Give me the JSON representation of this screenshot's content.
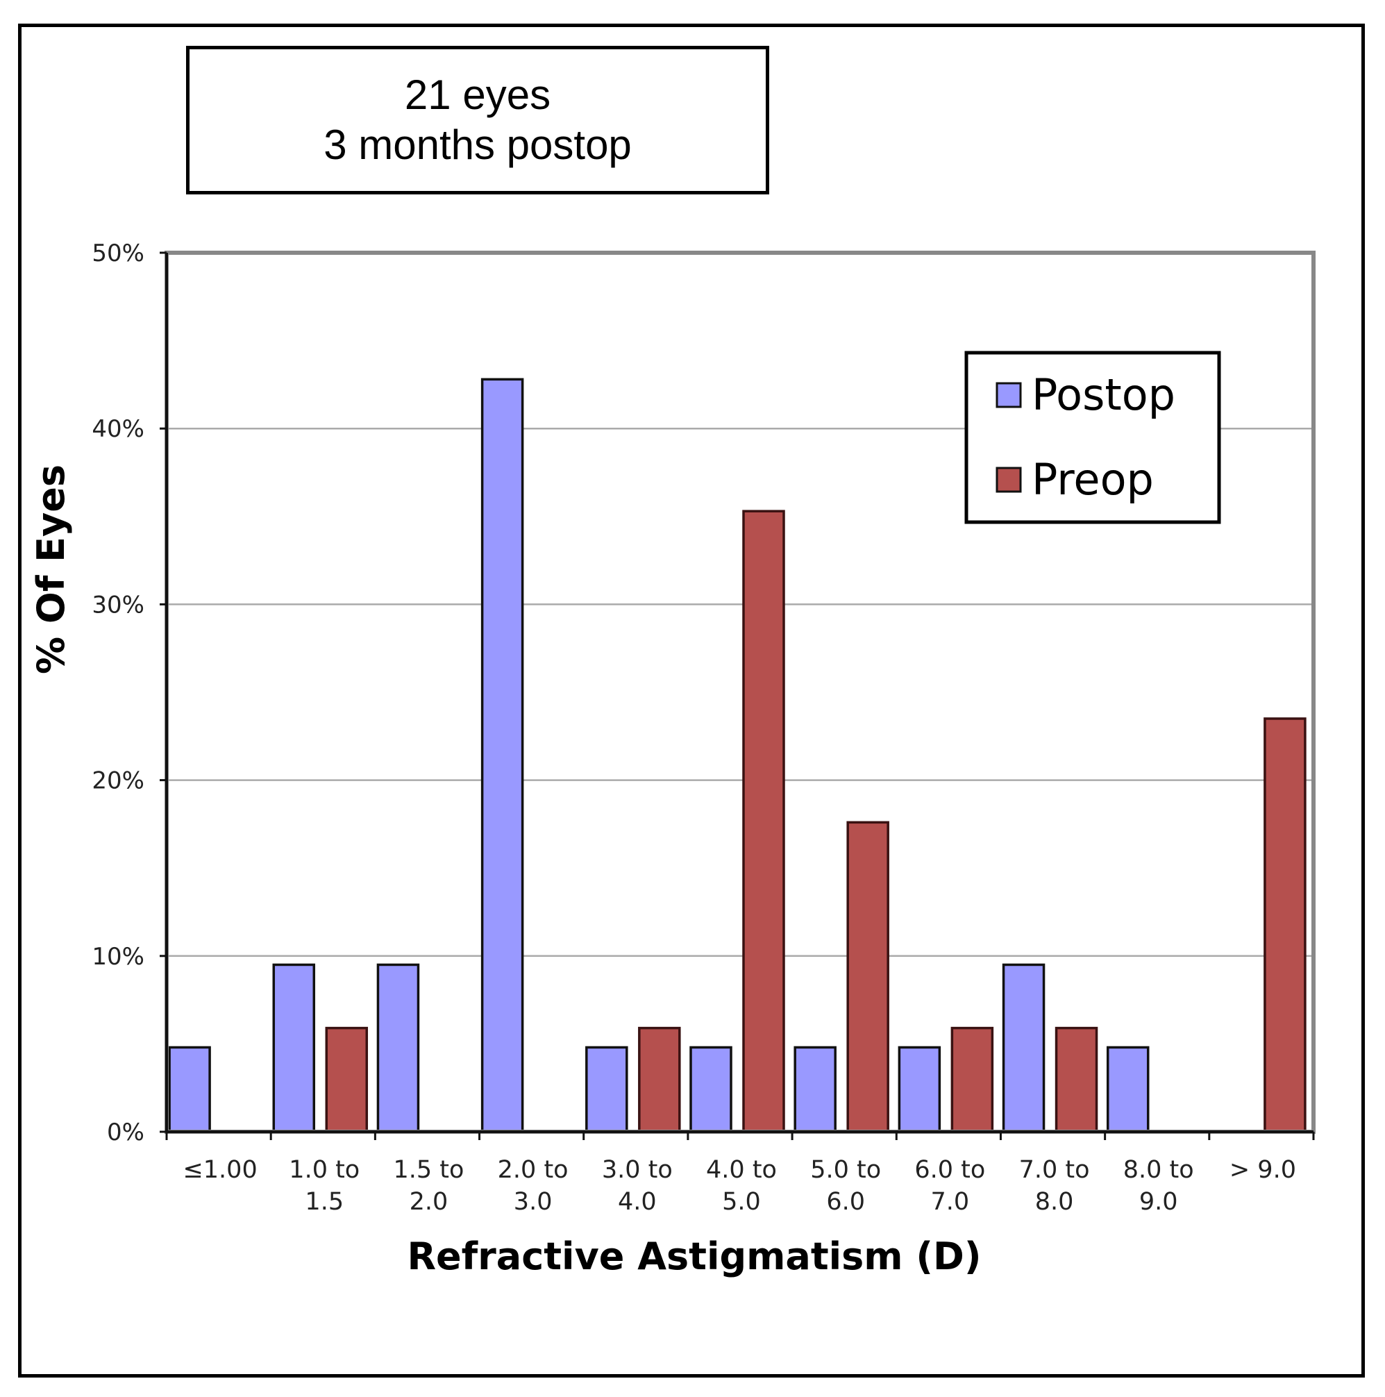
{
  "info_box": {
    "line1": "21 eyes",
    "line2": "3 months postop"
  },
  "colors": {
    "postop": "#9999FF",
    "preop": "#B5504E",
    "grid": "#AAAAAA",
    "plot_border": "#888888"
  },
  "chart_data": {
    "type": "bar",
    "title": "",
    "xlabel": "Refractive Astigmatism (D)",
    "ylabel": "% Of Eyes",
    "ylim": [
      0,
      50
    ],
    "yticks": [
      0,
      10,
      20,
      30,
      40,
      50
    ],
    "ytick_labels": [
      "0%",
      "10%",
      "20%",
      "30%",
      "40%",
      "50%"
    ],
    "grid": true,
    "legend_position": "top-right",
    "categories": [
      [
        "≤1.00"
      ],
      [
        "1.0 to",
        "1.5"
      ],
      [
        "1.5 to",
        "2.0"
      ],
      [
        "2.0 to",
        "3.0"
      ],
      [
        "3.0 to",
        "4.0"
      ],
      [
        "4.0 to",
        "5.0"
      ],
      [
        "5.0 to",
        "6.0"
      ],
      [
        "6.0 to",
        "7.0"
      ],
      [
        "7.0 to",
        "8.0"
      ],
      [
        "8.0 to",
        "9.0"
      ],
      [
        "> 9.0"
      ]
    ],
    "series": [
      {
        "name": "Postop",
        "values": [
          4.8,
          9.5,
          9.5,
          42.8,
          4.8,
          4.8,
          4.8,
          4.8,
          9.5,
          4.8,
          0
        ]
      },
      {
        "name": "Preop",
        "values": [
          0,
          5.9,
          0,
          0,
          5.9,
          35.3,
          17.6,
          5.9,
          5.9,
          0,
          23.5
        ]
      }
    ]
  }
}
